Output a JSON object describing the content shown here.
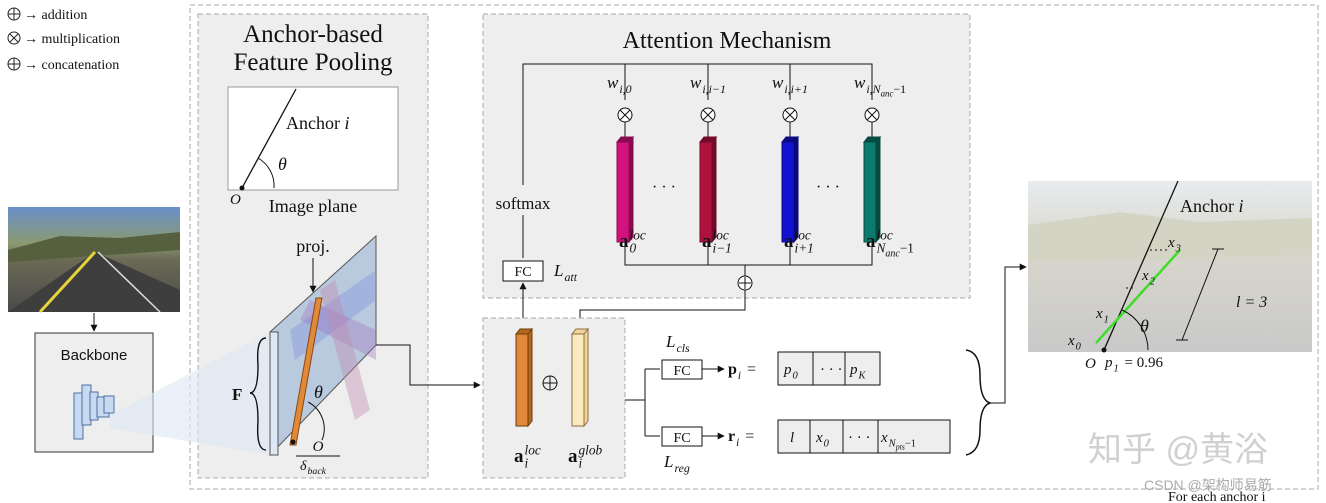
{
  "legend": [
    {
      "text": "→ addition"
    },
    {
      "text": "→ multiplication"
    },
    {
      "text": "→ concatenation"
    }
  ],
  "backbone": {
    "label": "Backbone"
  },
  "pooling": {
    "title": [
      "Anchor-based",
      "Feature Pooling"
    ],
    "anchor": {
      "base": "Anchor ",
      "var": "i"
    },
    "theta": "θ",
    "origin": "O",
    "image_plane": "Image plane",
    "proj": "proj.",
    "feature": "F",
    "feature_theta": "θ",
    "fraction": {
      "numerator": "O",
      "denominator": {
        "base": "δ",
        "sub": "back"
      }
    }
  },
  "attention": {
    "title": "Attention Mechanism",
    "weights": [
      {
        "base": "w",
        "sub": "i,0"
      },
      {
        "base": "w",
        "sub": "i,i−1"
      },
      {
        "base": "w",
        "sub": "i,i+1"
      },
      {
        "base": "w",
        "sub": "i,N",
        "sub2": "anc",
        "tail": "−1"
      }
    ],
    "features": [
      {
        "base": "a",
        "sup": "loc",
        "sub": "0"
      },
      {
        "base": "a",
        "sup": "loc",
        "sub": "i−1"
      },
      {
        "base": "a",
        "sup": "loc",
        "sub": "i+1"
      },
      {
        "base": "a",
        "sup": "loc",
        "sub": "N",
        "sub2": "anc",
        "tail": "−1"
      }
    ],
    "dots": [
      "· · ·",
      "· · ·"
    ],
    "softmax": "softmax",
    "fc": "FC",
    "loss": {
      "base": "L",
      "sub": "att"
    }
  },
  "combine": {
    "local": {
      "base": "a",
      "sup": "loc",
      "sub": "i"
    },
    "global": {
      "base": "a",
      "sup": "glob",
      "sub": "i"
    }
  },
  "heads": {
    "cls": {
      "loss": {
        "base": "L",
        "sub": "cls"
      },
      "fc": "FC",
      "output": {
        "base": "p",
        "sub": "i",
        "eq": " ="
      },
      "cells": [
        {
          "base": "p",
          "sub": "0"
        },
        {
          "base": "· · ·"
        },
        {
          "base": "p",
          "sub": "K"
        }
      ]
    },
    "reg": {
      "loss": {
        "base": "L",
        "sub": "reg"
      },
      "fc": "FC",
      "output": {
        "base": "r",
        "sub": "i",
        "eq": " ="
      },
      "cells": [
        {
          "base": "l"
        },
        {
          "base": "x",
          "sub": "0"
        },
        {
          "base": "· · ·"
        },
        {
          "base": "x",
          "sub": "N",
          "sub2": "pts",
          "tail": "−1"
        }
      ]
    }
  },
  "result": {
    "anchor": {
      "base": "Anchor ",
      "var": "i"
    },
    "points": [
      {
        "base": "x",
        "sub": "3"
      },
      {
        "base": "x",
        "sub": "2"
      },
      {
        "base": "x",
        "sub": "1"
      },
      {
        "base": "x",
        "sub": "0"
      }
    ],
    "theta": "θ",
    "length": "l = 3",
    "origin": "O",
    "score": {
      "base": "p",
      "sub": "1",
      "eq": " = 0.96"
    }
  },
  "watermarks": [
    "知乎 @黄浴",
    "CSDN @架构师易筋",
    "For each anchor i"
  ]
}
